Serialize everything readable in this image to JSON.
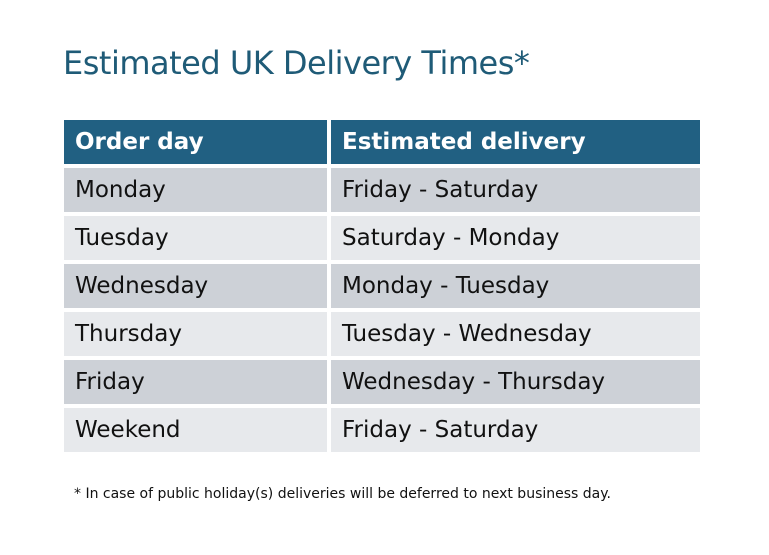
{
  "title": "Estimated UK Delivery Times*",
  "table": {
    "headers": [
      "Order day",
      "Estimated delivery"
    ],
    "rows": [
      [
        "Monday",
        "Friday - Saturday"
      ],
      [
        "Tuesday",
        "Saturday - Monday"
      ],
      [
        "Wednesday",
        "Monday - Tuesday"
      ],
      [
        "Thursday",
        "Tuesday - Wednesday"
      ],
      [
        "Friday",
        "Wednesday - Thursday"
      ],
      [
        "Weekend",
        "Friday - Saturday"
      ]
    ]
  },
  "footnote": "* In case of public holiday(s) deliveries will be deferred to next business day.",
  "colors": {
    "header": "#216082",
    "title": "#1f5b77",
    "row_dark": "#cdd1d7",
    "row_light": "#e7e9ec"
  }
}
